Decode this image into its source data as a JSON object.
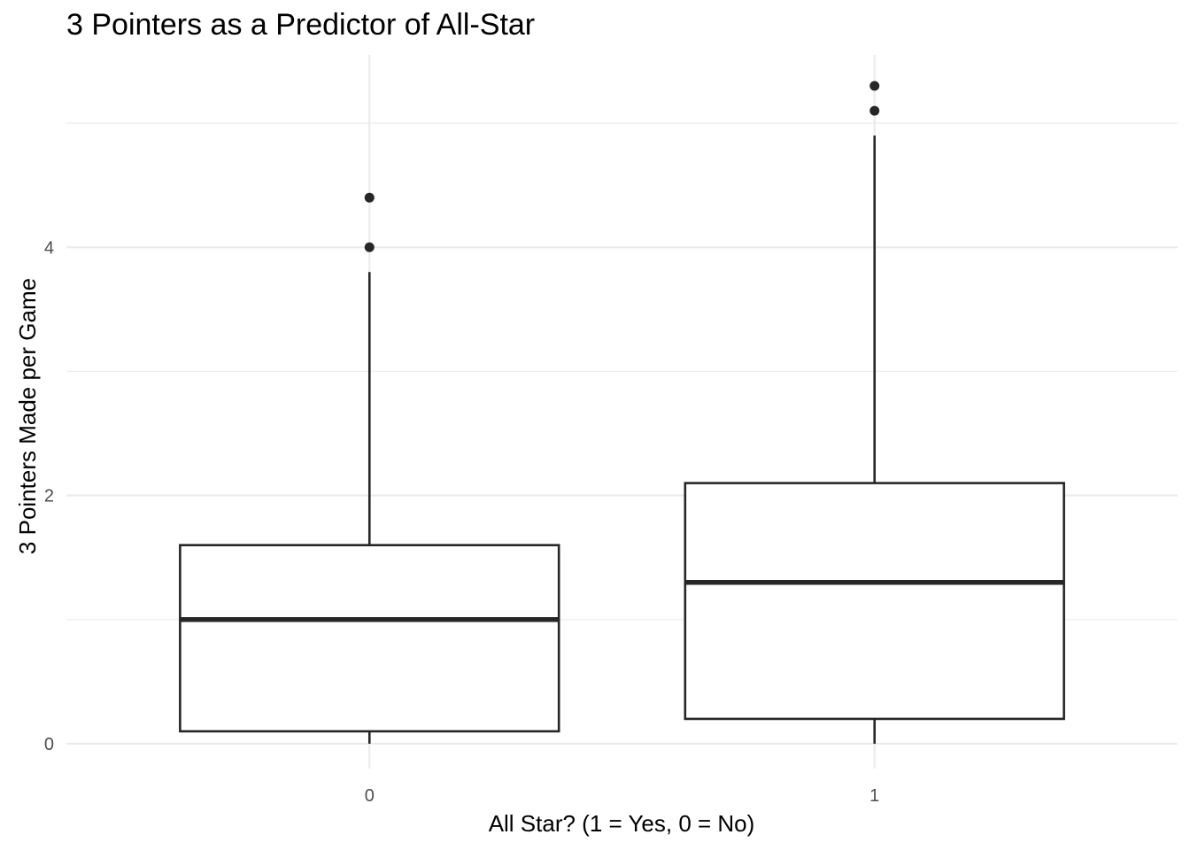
{
  "chart_data": {
    "type": "boxplot",
    "title": "3 Pointers as a Predictor of All-Star",
    "xlabel": "All Star? (1 = Yes, 0 = No)",
    "ylabel": "3 Pointers Made per Game",
    "categories": [
      "0",
      "1"
    ],
    "ylim": [
      -0.2,
      5.55
    ],
    "yticks": [
      0,
      2,
      4
    ],
    "ytick_labels": [
      "0",
      "2",
      "4"
    ],
    "grid": true,
    "boxes": [
      {
        "category": "0",
        "whisker_low": 0.0,
        "q1": 0.1,
        "median": 1.0,
        "q3": 1.6,
        "whisker_high": 3.8,
        "outliers": [
          4.0,
          4.4
        ]
      },
      {
        "category": "1",
        "whisker_low": 0.0,
        "q1": 0.2,
        "median": 1.3,
        "q3": 2.1,
        "whisker_high": 4.9,
        "outliers": [
          5.1,
          5.3
        ]
      }
    ]
  }
}
